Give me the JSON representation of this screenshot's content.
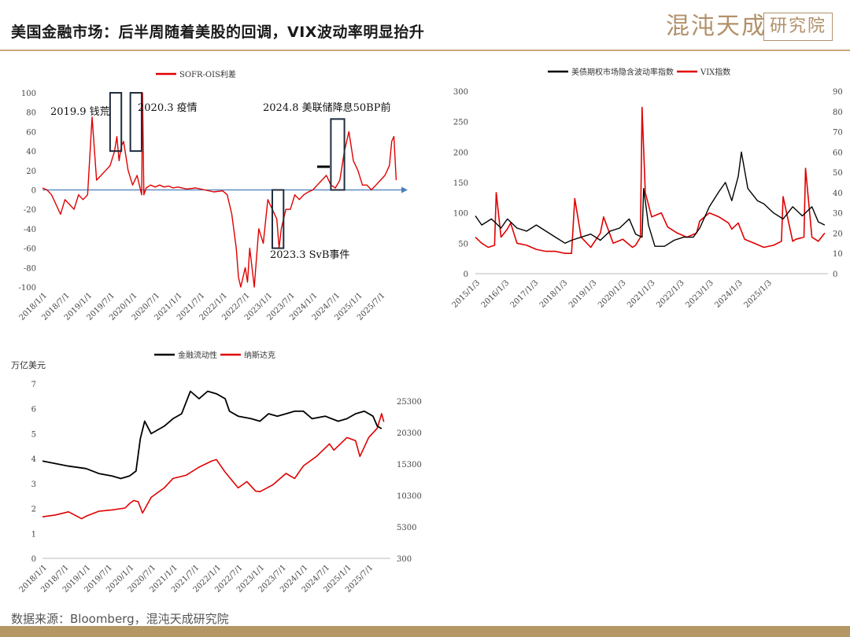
{
  "header": {
    "title": "美国金融市场：后半周随着美股的回调，VIX波动率明显抬升",
    "logo_text": "混沌天成",
    "logo_box_text": "研究院"
  },
  "footer": {
    "source": "数据来源：Bloomberg，混沌天成研究院"
  },
  "colors": {
    "red": "#e00000",
    "black": "#000000",
    "blue": "#4a7ebb",
    "gold": "#b2916a"
  },
  "chart_data": [
    {
      "type": "line",
      "title": "",
      "legend": [
        "SOFR-OIS利差"
      ],
      "legend_placement": "top-center",
      "ylim": [
        -100,
        100
      ],
      "yticks": [
        "100",
        "80",
        "60",
        "40",
        "20",
        "0",
        "-20",
        "-40",
        "-60",
        "-80",
        "-100"
      ],
      "xticks": [
        "2018/1/1",
        "2018/7/1",
        "2019/1/1",
        "2019/7/1",
        "2020/1/1",
        "2020/7/1",
        "2021/1/1",
        "2021/7/1",
        "2022/1/1",
        "2022/7/1",
        "2023/1/1",
        "2023/7/1",
        "2024/1/1",
        "2024/7/1",
        "2025/1/1",
        "2025/7/1"
      ],
      "annotations": [
        "2019.9 钱荒",
        "2020.3 疫情",
        "2024.8 美联储降息50BP前",
        "2023.3 SvB事件"
      ],
      "series": [
        {
          "name": "SOFR-OIS利差",
          "x": [
            2018.0,
            2018.1,
            2018.2,
            2018.3,
            2018.4,
            2018.5,
            2018.6,
            2018.7,
            2018.8,
            2018.9,
            2019.0,
            2019.1,
            2019.2,
            2019.3,
            2019.4,
            2019.5,
            2019.6,
            2019.65,
            2019.7,
            2019.75,
            2019.8,
            2019.9,
            2020.0,
            2020.1,
            2020.2,
            2020.22,
            2020.25,
            2020.3,
            2020.4,
            2020.5,
            2020.6,
            2020.7,
            2020.8,
            2020.9,
            2021.0,
            2021.2,
            2021.4,
            2021.6,
            2021.8,
            2022.0,
            2022.1,
            2022.2,
            2022.3,
            2022.35,
            2022.4,
            2022.5,
            2022.55,
            2022.6,
            2022.7,
            2022.75,
            2022.8,
            2022.9,
            2023.0,
            2023.1,
            2023.2,
            2023.25,
            2023.3,
            2023.4,
            2023.5,
            2023.6,
            2023.7,
            2023.8,
            2023.9,
            2024.0,
            2024.1,
            2024.2,
            2024.3,
            2024.4,
            2024.5,
            2024.6,
            2024.65,
            2024.7,
            2024.8,
            2024.9,
            2025.0,
            2025.1,
            2025.2,
            2025.3,
            2025.4,
            2025.5,
            2025.6,
            2025.7,
            2025.75,
            2025.8,
            2025.85
          ],
          "values": [
            2,
            0,
            -5,
            -15,
            -25,
            -10,
            -15,
            -20,
            -5,
            -10,
            -5,
            75,
            10,
            15,
            20,
            25,
            40,
            55,
            30,
            45,
            50,
            20,
            5,
            15,
            -5,
            100,
            -5,
            2,
            5,
            3,
            5,
            3,
            4,
            2,
            3,
            1,
            2,
            0,
            -2,
            -1,
            -5,
            -25,
            -60,
            -90,
            -100,
            -80,
            -95,
            -60,
            -100,
            -70,
            -40,
            -55,
            -10,
            -20,
            -30,
            -60,
            -40,
            -20,
            -20,
            -5,
            -10,
            -5,
            -2,
            0,
            5,
            10,
            15,
            5,
            2,
            10,
            25,
            40,
            60,
            30,
            20,
            5,
            5,
            0,
            5,
            10,
            15,
            25,
            50,
            55,
            10
          ]
        }
      ]
    },
    {
      "type": "line",
      "title": "",
      "legend": [
        "美债期权市场隐含波动率指数",
        "VIX指数"
      ],
      "legend_placement": "top-center",
      "ylim_left": [
        0,
        300
      ],
      "ylim_right": [
        0,
        90
      ],
      "yticks_left": [
        "300",
        "250",
        "200",
        "150",
        "100",
        "50",
        "0"
      ],
      "yticks_right": [
        "90",
        "80",
        "70",
        "60",
        "50",
        "40",
        "30",
        "20",
        "10",
        "0"
      ],
      "xticks": [
        "2015/1/3",
        "2016/1/3",
        "2017/1/3",
        "2018/1/3",
        "2019/1/3",
        "2020/1/3",
        "2021/1/3",
        "2022/1/3",
        "2023/1/3",
        "2024/1/3",
        "2025/1/3"
      ],
      "series": [
        {
          "name": "美债期权市场隐含波动率指数",
          "axis": "left",
          "x": [
            2015.0,
            2015.2,
            2015.5,
            2015.8,
            2016.0,
            2016.3,
            2016.6,
            2016.9,
            2017.2,
            2017.5,
            2017.8,
            2018.0,
            2018.3,
            2018.6,
            2018.9,
            2019.2,
            2019.5,
            2019.8,
            2020.0,
            2020.2,
            2020.25,
            2020.4,
            2020.6,
            2020.9,
            2021.2,
            2021.5,
            2021.8,
            2022.0,
            2022.3,
            2022.6,
            2022.8,
            2023.0,
            2023.2,
            2023.3,
            2023.5,
            2023.8,
            2024.0,
            2024.3,
            2024.6,
            2024.9,
            2025.2,
            2025.5,
            2025.7,
            2025.9
          ],
          "values": [
            95,
            80,
            90,
            75,
            90,
            75,
            70,
            80,
            70,
            60,
            50,
            55,
            60,
            65,
            55,
            70,
            75,
            90,
            65,
            60,
            140,
            80,
            45,
            45,
            55,
            60,
            60,
            75,
            110,
            135,
            150,
            120,
            160,
            200,
            140,
            120,
            115,
            100,
            90,
            110,
            95,
            110,
            85,
            80
          ]
        },
        {
          "name": "VIX指数",
          "axis": "right",
          "x": [
            2015.0,
            2015.2,
            2015.4,
            2015.6,
            2015.65,
            2015.8,
            2016.0,
            2016.1,
            2016.3,
            2016.6,
            2016.9,
            2017.2,
            2017.5,
            2017.8,
            2018.0,
            2018.1,
            2018.3,
            2018.6,
            2018.9,
            2019.0,
            2019.3,
            2019.6,
            2019.9,
            2020.0,
            2020.15,
            2020.2,
            2020.3,
            2020.5,
            2020.8,
            2021.0,
            2021.3,
            2021.6,
            2021.9,
            2022.0,
            2022.3,
            2022.6,
            2022.9,
            2023.0,
            2023.2,
            2023.4,
            2023.7,
            2024.0,
            2024.3,
            2024.55,
            2024.6,
            2024.9,
            2025.0,
            2025.25,
            2025.3,
            2025.5,
            2025.7,
            2025.9
          ],
          "values": [
            18,
            15,
            13,
            14,
            40,
            18,
            22,
            25,
            15,
            14,
            12,
            11,
            11,
            10,
            10,
            37,
            18,
            13,
            20,
            28,
            15,
            17,
            13,
            14,
            18,
            82,
            40,
            28,
            30,
            23,
            20,
            18,
            20,
            26,
            30,
            28,
            25,
            22,
            25,
            17,
            15,
            13,
            14,
            16,
            38,
            16,
            17,
            18,
            52,
            18,
            16,
            20
          ]
        }
      ]
    },
    {
      "type": "line",
      "title": "",
      "legend": [
        "金融流动性",
        "纳斯达克"
      ],
      "legend_placement": "top-center",
      "ylabel": "万亿美元",
      "ylim_left": [
        0,
        7
      ],
      "ylim_right": [
        300,
        25300
      ],
      "yticks_left": [
        "7",
        "6",
        "5",
        "4",
        "3",
        "2",
        "1",
        "0"
      ],
      "yticks_right": [
        "25300",
        "20300",
        "15300",
        "10300",
        "5300",
        "300"
      ],
      "xticks": [
        "2018/1/1",
        "2018/7/1",
        "2019/1/1",
        "2019/7/1",
        "2020/1/1",
        "2020/7/1",
        "2021/1/1",
        "2021/7/1",
        "2022/1/1",
        "2022/7/1",
        "2023/1/1",
        "2023/7/1",
        "2024/1/1",
        "2024/7/1",
        "2025/1/1",
        "2025/7/1"
      ],
      "series": [
        {
          "name": "金融流动性",
          "axis": "left",
          "x": [
            2018.0,
            2018.3,
            2018.6,
            2019.0,
            2019.3,
            2019.6,
            2019.8,
            2020.0,
            2020.15,
            2020.25,
            2020.35,
            2020.5,
            2020.8,
            2021.0,
            2021.2,
            2021.4,
            2021.6,
            2021.8,
            2022.0,
            2022.2,
            2022.3,
            2022.5,
            2022.8,
            2023.0,
            2023.2,
            2023.4,
            2023.6,
            2023.8,
            2024.0,
            2024.2,
            2024.5,
            2024.8,
            2025.0,
            2025.2,
            2025.4,
            2025.6,
            2025.7,
            2025.8
          ],
          "values": [
            3.9,
            3.8,
            3.7,
            3.6,
            3.4,
            3.3,
            3.2,
            3.3,
            3.5,
            4.8,
            5.5,
            5.0,
            5.3,
            5.6,
            5.8,
            6.7,
            6.4,
            6.7,
            6.6,
            6.4,
            5.9,
            5.7,
            5.6,
            5.5,
            5.8,
            5.7,
            5.8,
            5.9,
            5.9,
            5.6,
            5.7,
            5.5,
            5.6,
            5.8,
            5.9,
            5.7,
            5.3,
            5.2
          ]
        },
        {
          "name": "纳斯达克",
          "axis": "right",
          "x": [
            2018.0,
            2018.3,
            2018.6,
            2018.9,
            2019.0,
            2019.3,
            2019.6,
            2019.9,
            2020.0,
            2020.1,
            2020.2,
            2020.3,
            2020.5,
            2020.8,
            2021.0,
            2021.3,
            2021.6,
            2021.9,
            2022.0,
            2022.2,
            2022.5,
            2022.7,
            2022.9,
            2023.0,
            2023.3,
            2023.6,
            2023.8,
            2024.0,
            2024.3,
            2024.6,
            2024.7,
            2025.0,
            2025.2,
            2025.3,
            2025.5,
            2025.7,
            2025.8,
            2025.85
          ],
          "values": [
            6900,
            7200,
            7700,
            6600,
            7000,
            7800,
            8000,
            8300,
            9000,
            9500,
            9300,
            7500,
            10000,
            11500,
            13000,
            13500,
            14800,
            15800,
            16000,
            14000,
            11500,
            12500,
            11000,
            10900,
            12000,
            13800,
            13000,
            15000,
            16500,
            18500,
            17500,
            19500,
            19000,
            16500,
            19500,
            21000,
            23300,
            22000
          ]
        }
      ]
    }
  ]
}
